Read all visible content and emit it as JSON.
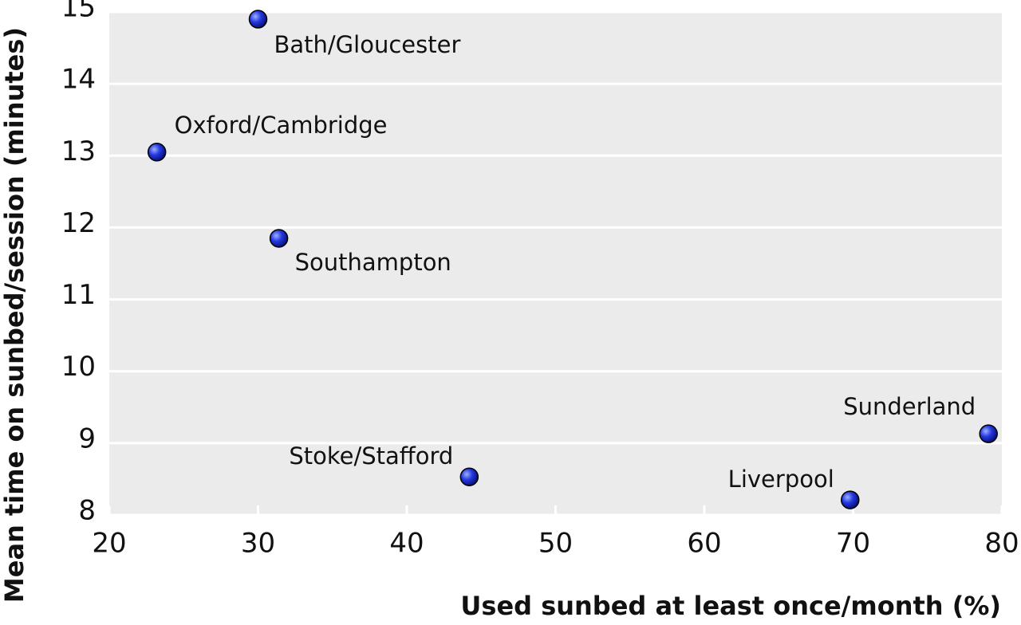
{
  "chart_data": {
    "type": "scatter",
    "x_label": "Used sunbed at least once/month (%)",
    "y_label": "Mean time on sunbed/session (minutes)",
    "labels": [
      "Bath/Gloucester",
      "Oxford/Cambridge",
      "Southampton",
      "Stoke/Stafford",
      "Liverpool",
      "Sunderland"
    ],
    "x": [
      30.0,
      23.2,
      31.4,
      44.2,
      69.8,
      79.1
    ],
    "y": [
      14.9,
      13.05,
      11.85,
      8.53,
      8.21,
      9.13
    ],
    "color": "#1f2fd6",
    "xlim": [
      20,
      80
    ],
    "xticks": [
      20,
      30,
      40,
      50,
      60,
      70,
      80
    ],
    "ylim": [
      8,
      15
    ],
    "yticks": [
      8,
      9,
      10,
      11,
      12,
      13,
      14,
      15
    ],
    "grid": true
  }
}
